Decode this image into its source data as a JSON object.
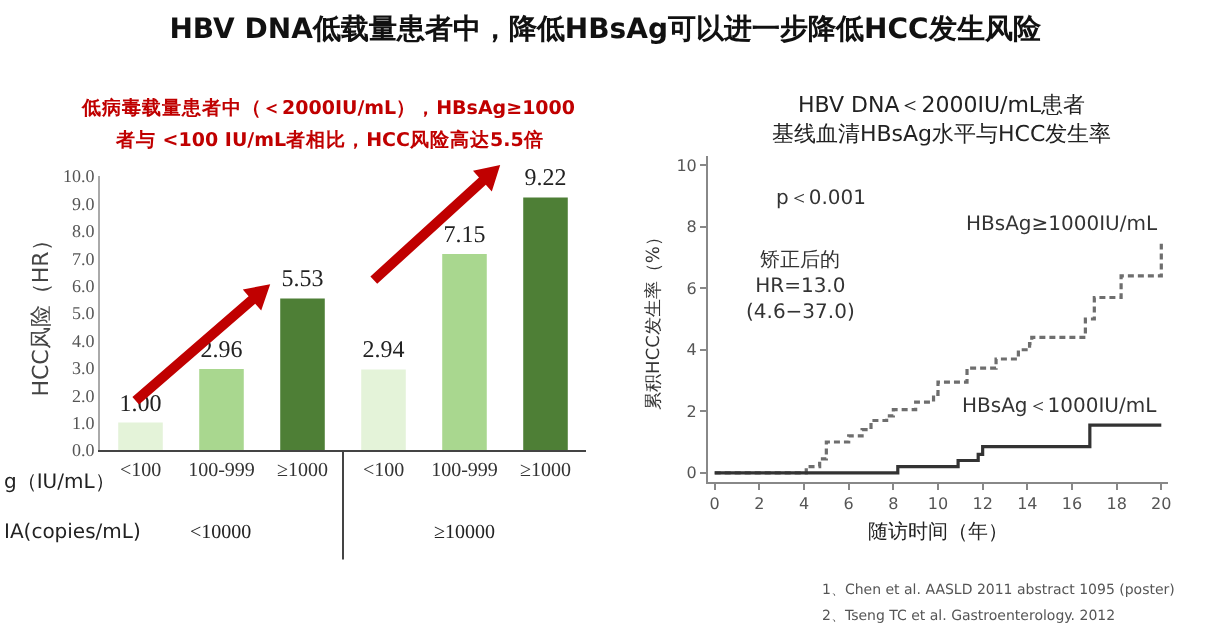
{
  "chart_data": [
    {
      "type": "bar",
      "title": "HBV DNA低载量患者中，降低HBsAg可以进一步降低HCC发生风险",
      "ylabel": "HCC风险（HR）",
      "categories": [
        "<100",
        "100-999",
        "≥1000",
        "<100",
        "100-999",
        "≥1000"
      ],
      "values": [
        1,
        2.96,
        5.53,
        2.94,
        7.15,
        9.22
      ],
      "value_labels": [
        "1.00",
        "2.96",
        "5.53",
        "2.94",
        "7.15",
        "9.22"
      ],
      "colors": [
        "#e4f3d9",
        "#a9d78f",
        "#4e7f36",
        "#e4f3d9",
        "#a9d78f",
        "#4e7f36"
      ],
      "ylim": [
        0,
        10
      ],
      "yticks": [
        {
          "value": 0,
          "label": "0.0"
        },
        {
          "value": 1,
          "label": "1.0"
        },
        {
          "value": 2,
          "label": "2.0"
        },
        {
          "value": 3,
          "label": "3.0"
        },
        {
          "value": 4,
          "label": "4.0"
        },
        {
          "value": 5,
          "label": "5.0"
        },
        {
          "value": 6,
          "label": "6.0"
        },
        {
          "value": 7,
          "label": "7.0"
        },
        {
          "value": 8,
          "label": "8.0"
        },
        {
          "value": 9,
          "label": "9.0"
        },
        {
          "value": 10,
          "label": "10.0"
        }
      ],
      "grid": false,
      "annotations": [
        "低病毒载量患者中（＜2000IU/mL），HBsAg≥1000",
        "者与 <100 IU/mL者相比，HCC风险高达5.5倍",
        "<10000",
        "≥10000",
        "g（IU/mL）",
        "IA(copies/mL)"
      ]
    },
    {
      "type": "step",
      "title": "HBV DNA＜2000IU/mL患者",
      "subtitle": "基线血清HBsAg水平与HCC发生率",
      "xlabel": "随访时间（年）",
      "ylabel": "累积HCC发生率（%）",
      "xlim": [
        -0.3,
        20.3
      ],
      "xticks": [
        0,
        2,
        4,
        6,
        8,
        10,
        12,
        14,
        16,
        18,
        20
      ],
      "ylim": [
        -0.3,
        10.3
      ],
      "yticks": [
        0,
        2,
        4,
        6,
        8,
        10
      ],
      "grid": false,
      "legend": false,
      "series": [
        {
          "name": "HBsAg≥1000IU/mL",
          "color": "#6e6e6e",
          "line_style": "dashed",
          "x": [
            0,
            4.1,
            4.7,
            5.0,
            6.0,
            6.6,
            7.0,
            7.7,
            8.0,
            9.0,
            9.8,
            10.0,
            11.3,
            12.6,
            13.6,
            14.1,
            14.2,
            16.6,
            17.0,
            18.2,
            20
          ],
          "values": [
            0,
            0.2,
            0.45,
            1.0,
            1.2,
            1.4,
            1.7,
            1.85,
            2.05,
            2.3,
            2.55,
            2.95,
            3.4,
            3.7,
            4.0,
            4.2,
            4.4,
            5.0,
            5.7,
            6.4,
            7.45
          ]
        },
        {
          "name": "HBsAg＜1000IU/mL",
          "color": "#333333",
          "line_style": "solid",
          "x": [
            0,
            8.2,
            10.9,
            11.8,
            12.0,
            16.8,
            20
          ],
          "values": [
            0,
            0.2,
            0.4,
            0.6,
            0.85,
            1.55,
            1.55
          ]
        }
      ],
      "annotations": [
        "p＜0.001",
        "矫正后的\nHR=13.0\n(4.6−37.0)",
        "1、Chen et al. AASLD 2011 abstract 1095 (poster)",
        "2、Tseng TC et al. Gastroenterology. 2012"
      ]
    }
  ]
}
